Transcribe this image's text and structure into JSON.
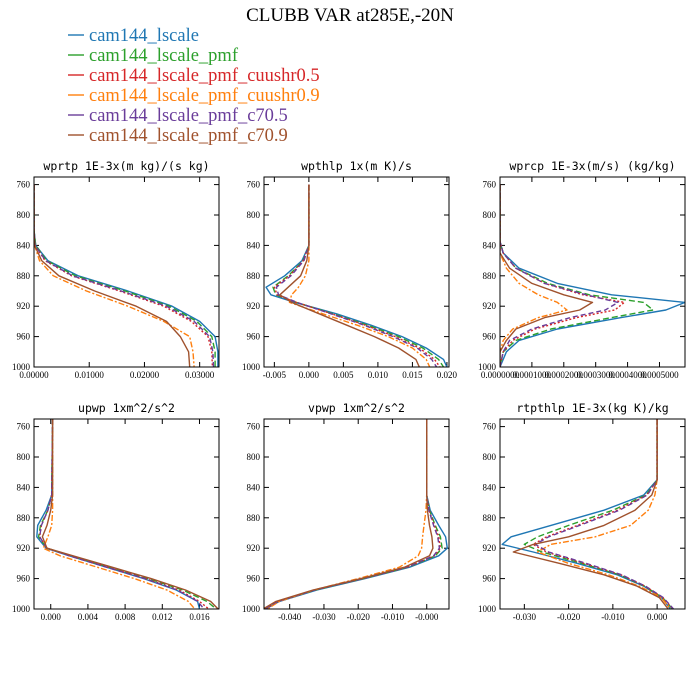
{
  "figure": {
    "title": "CLUBB VAR at285E,-20N"
  },
  "legend": [
    {
      "label": "cam144_lscale",
      "color": "#1f77b4",
      "dash": ""
    },
    {
      "label": "cam144_lscale_pmf",
      "color": "#2ca02c",
      "dash": "6,3"
    },
    {
      "label": "cam144_lscale_pmf_cuushr0.5",
      "color": "#d62728",
      "dash": "2,2"
    },
    {
      "label": "cam144_lscale_pmf_cuushr0.9",
      "color": "#ff7f0e",
      "dash": "6,2,2,2"
    },
    {
      "label": "cam144_lscale_pmf_c70.5",
      "color": "#6a3d9a",
      "dash": "5,3"
    },
    {
      "label": "cam144_lscale_pmf_c70.9",
      "color": "#a0522d",
      "dash": ""
    }
  ],
  "chart_data": [
    {
      "type": "line",
      "title": "wprtp  1E-3x(m kg)/(s kg)",
      "ylim": [
        1000,
        750
      ],
      "yticks": [
        760,
        800,
        840,
        880,
        920,
        960,
        1000
      ],
      "xlim": [
        0,
        0.0335
      ],
      "xticks": [
        0,
        0.01,
        0.02,
        0.03
      ],
      "xtick_labels": [
        "0.00000",
        "0.01000",
        "0.02000",
        "0.03000"
      ],
      "y": [
        760,
        820,
        840,
        860,
        880,
        900,
        920,
        940,
        960,
        980,
        1000
      ],
      "series": [
        {
          "name": "cam144_lscale",
          "values": [
            0,
            0,
            0.0003,
            0.0025,
            0.008,
            0.017,
            0.025,
            0.03,
            0.0328,
            0.0333,
            0.0333
          ]
        },
        {
          "name": "cam144_lscale_pmf",
          "values": [
            0,
            0,
            0.0003,
            0.0023,
            0.0075,
            0.0165,
            0.0245,
            0.0295,
            0.0322,
            0.0328,
            0.0328
          ]
        },
        {
          "name": "cam144_lscale_pmf_cuushr0.5",
          "values": [
            0,
            0,
            0.0002,
            0.002,
            0.0068,
            0.0155,
            0.0235,
            0.0285,
            0.0315,
            0.0322,
            0.0323
          ]
        },
        {
          "name": "cam144_lscale_pmf_cuushr0.9",
          "values": [
            0,
            0,
            0.0001,
            0.001,
            0.0035,
            0.0095,
            0.017,
            0.0235,
            0.0282,
            0.0288,
            0.029
          ]
        },
        {
          "name": "cam144_lscale_pmf_c70.5",
          "values": [
            0,
            0,
            0.0002,
            0.0021,
            0.007,
            0.0158,
            0.024,
            0.029,
            0.0318,
            0.0324,
            0.0325
          ]
        },
        {
          "name": "cam144_lscale_pmf_c70.9",
          "values": [
            0,
            0,
            0.0001,
            0.0014,
            0.0045,
            0.011,
            0.0185,
            0.024,
            0.0265,
            0.028,
            0.0282
          ]
        }
      ]
    },
    {
      "type": "line",
      "title": "wpthlp  1x(m K)/s",
      "ylim": [
        1000,
        750
      ],
      "yticks": [
        760,
        800,
        840,
        880,
        920,
        960,
        1000
      ],
      "xlim": [
        -0.0065,
        0.0203
      ],
      "xticks": [
        -0.005,
        0,
        0.005,
        0.01,
        0.015,
        0.02
      ],
      "xtick_labels": [
        "-0.005",
        "0.000",
        "0.005",
        "0.010",
        "0.015",
        "0.020"
      ],
      "y": [
        760,
        840,
        860,
        880,
        895,
        905,
        915,
        930,
        945,
        960,
        975,
        990,
        1000
      ],
      "series": [
        {
          "name": "cam144_lscale",
          "values": [
            0,
            0,
            -0.001,
            -0.0035,
            -0.0062,
            -0.0055,
            -0.002,
            0.004,
            0.009,
            0.0135,
            0.017,
            0.0195,
            0.02
          ]
        },
        {
          "name": "cam144_lscale_pmf",
          "values": [
            0,
            0,
            -0.0008,
            -0.003,
            -0.0052,
            -0.0048,
            -0.0018,
            0.0035,
            0.0085,
            0.013,
            0.0165,
            0.0188,
            0.0195
          ]
        },
        {
          "name": "cam144_lscale_pmf_cuushr0.5",
          "values": [
            0,
            0,
            -0.0008,
            -0.0028,
            -0.005,
            -0.0046,
            -0.0018,
            0.0033,
            0.0082,
            0.0125,
            0.016,
            0.0182,
            0.019
          ]
        },
        {
          "name": "cam144_lscale_pmf_cuushr0.9",
          "values": [
            0,
            0,
            0,
            -0.0005,
            -0.0015,
            -0.0025,
            -0.0028,
            0.002,
            0.007,
            0.0115,
            0.015,
            0.017,
            0.0175
          ]
        },
        {
          "name": "cam144_lscale_pmf_c70.5",
          "values": [
            0,
            0,
            -0.0007,
            -0.0026,
            -0.0047,
            -0.0044,
            -0.0017,
            0.0032,
            0.008,
            0.0122,
            0.0157,
            0.0178,
            0.0185
          ]
        },
        {
          "name": "cam144_lscale_pmf_c70.9",
          "values": [
            0,
            0,
            -0.0003,
            -0.0012,
            -0.003,
            -0.0042,
            -0.0025,
            0.0015,
            0.0055,
            0.0095,
            0.013,
            0.0155,
            0.016
          ]
        }
      ]
    },
    {
      "type": "line",
      "title": "wprcp  1E-3x(m/s) (kg/kg)",
      "ylim": [
        1000,
        750
      ],
      "yticks": [
        760,
        800,
        840,
        880,
        920,
        960,
        1000
      ],
      "xlim": [
        0,
        0.00058
      ],
      "xticks": [
        0,
        0.0001,
        0.0002,
        0.0003,
        0.0004,
        0.0005
      ],
      "xtick_labels": [
        "0.0000000",
        "0.0001000",
        "0.0002000",
        "0.0003000",
        "0.0004000",
        "0.0005000"
      ],
      "y": [
        760,
        835,
        850,
        870,
        890,
        905,
        915,
        925,
        935,
        950,
        965,
        980,
        1000
      ],
      "series": [
        {
          "name": "cam144_lscale",
          "values": [
            0,
            0,
            1e-05,
            6e-05,
            0.00018,
            0.00035,
            0.00058,
            0.00052,
            0.00038,
            0.00018,
            6e-05,
            2e-05,
            0
          ]
        },
        {
          "name": "cam144_lscale_pmf",
          "values": [
            0,
            0,
            1e-05,
            5e-05,
            0.00015,
            0.00028,
            0.00045,
            0.00048,
            0.00035,
            0.00016,
            5e-05,
            1e-05,
            0
          ]
        },
        {
          "name": "cam144_lscale_pmf_cuushr0.5",
          "values": [
            0,
            0,
            1e-05,
            5e-05,
            0.00014,
            0.00026,
            0.00039,
            0.00036,
            0.00024,
            0.00011,
            4e-05,
            1e-05,
            0
          ]
        },
        {
          "name": "cam144_lscale_pmf_cuushr0.9",
          "values": [
            0,
            0,
            0,
            2e-05,
            6e-05,
            0.00012,
            0.00018,
            0.00021,
            0.00012,
            4e-05,
            1e-05,
            0,
            0
          ]
        },
        {
          "name": "cam144_lscale_pmf_c70.5",
          "values": [
            0,
            0,
            1e-05,
            5e-05,
            0.00014,
            0.00027,
            0.00037,
            0.00033,
            0.00022,
            0.0001,
            3e-05,
            1e-05,
            0
          ]
        },
        {
          "name": "cam144_lscale_pmf_c70.9",
          "values": [
            0,
            0,
            0,
            3e-05,
            0.0001,
            0.0002,
            0.00029,
            0.00025,
            0.00014,
            5e-05,
            2e-05,
            0,
            0
          ]
        }
      ]
    },
    {
      "type": "line",
      "title": "upwp  1xm^2/s^2",
      "ylim": [
        1000,
        750
      ],
      "yticks": [
        760,
        800,
        840,
        880,
        920,
        960,
        1000
      ],
      "xlim": [
        -0.0018,
        0.0181
      ],
      "xticks": [
        0,
        0.004,
        0.008,
        0.012,
        0.016
      ],
      "xtick_labels": [
        "0.000",
        "0.004",
        "0.008",
        "0.012",
        "0.016"
      ],
      "y": [
        750,
        850,
        870,
        890,
        905,
        920,
        930,
        945,
        960,
        975,
        990,
        1000
      ],
      "series": [
        {
          "name": "cam144_lscale",
          "values": [
            0.0002,
            0.0001,
            -0.0005,
            -0.0014,
            -0.0015,
            -0.0005,
            0.002,
            0.006,
            0.01,
            0.0135,
            0.0158,
            0.016
          ]
        },
        {
          "name": "cam144_lscale_pmf",
          "values": [
            0.0002,
            0.0001,
            -0.0003,
            -0.0011,
            -0.0013,
            -0.0004,
            0.0022,
            0.0063,
            0.0105,
            0.0142,
            0.0168,
            0.0178
          ]
        },
        {
          "name": "cam144_lscale_pmf_cuushr0.5",
          "values": [
            0.0002,
            0.0001,
            -0.0003,
            -0.001,
            -0.0012,
            -0.0004,
            0.0021,
            0.0061,
            0.0102,
            0.0138,
            0.016,
            0.017
          ]
        },
        {
          "name": "cam144_lscale_pmf_cuushr0.9",
          "values": [
            0.0002,
            0.0002,
            0.0002,
            0.0001,
            -0.0003,
            -0.0008,
            0.001,
            0.005,
            0.009,
            0.0125,
            0.0148,
            0.0155
          ]
        },
        {
          "name": "cam144_lscale_pmf_c70.5",
          "values": [
            0.0002,
            0.0001,
            -0.0003,
            -0.001,
            -0.0012,
            -0.0004,
            0.002,
            0.006,
            0.0101,
            0.0136,
            0.0158,
            0.0165
          ]
        },
        {
          "name": "cam144_lscale_pmf_c70.9",
          "values": [
            0.0002,
            0.0002,
            0,
            -0.0004,
            -0.0009,
            -0.0004,
            0.0024,
            0.0066,
            0.0108,
            0.0145,
            0.0172,
            0.018
          ]
        }
      ]
    },
    {
      "type": "line",
      "title": "vpwp  1xm^2/s^2",
      "ylim": [
        1000,
        750
      ],
      "yticks": [
        760,
        800,
        840,
        880,
        920,
        960,
        1000
      ],
      "xlim": [
        -0.0475,
        0.0065
      ],
      "xticks": [
        -0.04,
        -0.03,
        -0.02,
        -0.01,
        0
      ],
      "xtick_labels": [
        "-0.040",
        "-0.030",
        "-0.020",
        "-0.010",
        "-0.000"
      ],
      "y": [
        750,
        850,
        870,
        890,
        905,
        920,
        930,
        945,
        960,
        975,
        990,
        1000
      ],
      "series": [
        {
          "name": "cam144_lscale",
          "values": [
            0,
            0,
            0.001,
            0.0035,
            0.0055,
            0.006,
            0.0035,
            -0.005,
            -0.018,
            -0.032,
            -0.043,
            -0.047
          ]
        },
        {
          "name": "cam144_lscale_pmf",
          "values": [
            0,
            0,
            0.0008,
            0.0025,
            0.004,
            0.0045,
            0.0025,
            -0.0055,
            -0.0185,
            -0.0325,
            -0.0435,
            -0.0475
          ]
        },
        {
          "name": "cam144_lscale_pmf_cuushr0.5",
          "values": [
            0,
            0,
            0.0007,
            0.0022,
            0.0035,
            0.004,
            0.0022,
            -0.0057,
            -0.0187,
            -0.0327,
            -0.0435,
            -0.0472
          ]
        },
        {
          "name": "cam144_lscale_pmf_cuushr0.9",
          "values": [
            0,
            0,
            -0.0002,
            -0.0008,
            -0.0012,
            -0.0015,
            -0.0025,
            -0.008,
            -0.02,
            -0.033,
            -0.043,
            -0.0465
          ]
        },
        {
          "name": "cam144_lscale_pmf_c70.5",
          "values": [
            0,
            0,
            0.0006,
            0.002,
            0.0032,
            0.0037,
            0.002,
            -0.0058,
            -0.0188,
            -0.0328,
            -0.0436,
            -0.0473
          ]
        },
        {
          "name": "cam144_lscale_pmf_c70.9",
          "values": [
            0,
            0,
            0.0002,
            0.0008,
            0.0015,
            0.0018,
            0.0008,
            -0.0065,
            -0.0192,
            -0.0332,
            -0.044,
            -0.0478
          ]
        }
      ]
    },
    {
      "type": "line",
      "title": "rtpthlp  1E-3x(kg K)/kg",
      "ylim": [
        1000,
        750
      ],
      "yticks": [
        760,
        800,
        840,
        880,
        920,
        960,
        1000
      ],
      "xlim": [
        -0.0355,
        0.0063
      ],
      "xticks": [
        -0.03,
        -0.02,
        -0.01,
        0
      ],
      "xtick_labels": [
        "-0.030",
        "-0.020",
        "-0.010",
        "0.000"
      ],
      "y": [
        750,
        830,
        850,
        870,
        890,
        905,
        915,
        925,
        940,
        955,
        970,
        985,
        1000
      ],
      "series": [
        {
          "name": "cam144_lscale",
          "values": [
            0,
            0,
            -0.003,
            -0.012,
            -0.024,
            -0.033,
            -0.035,
            -0.028,
            -0.018,
            -0.009,
            -0.003,
            0.001,
            0.003
          ]
        },
        {
          "name": "cam144_lscale_pmf",
          "values": [
            0,
            0,
            -0.0025,
            -0.01,
            -0.02,
            -0.027,
            -0.03,
            -0.026,
            -0.017,
            -0.0085,
            -0.0028,
            0.0012,
            0.0035
          ]
        },
        {
          "name": "cam144_lscale_pmf_cuushr0.5",
          "values": [
            0,
            0,
            -0.0023,
            -0.009,
            -0.018,
            -0.025,
            -0.028,
            -0.025,
            -0.0165,
            -0.0082,
            -0.0027,
            0.0013,
            0.0036
          ]
        },
        {
          "name": "cam144_lscale_pmf_cuushr0.9",
          "values": [
            0,
            0,
            -0.0005,
            -0.002,
            -0.006,
            -0.014,
            -0.024,
            -0.027,
            -0.02,
            -0.011,
            -0.004,
            0.001,
            0.003
          ]
        },
        {
          "name": "cam144_lscale_pmf_c70.5",
          "values": [
            0,
            0,
            -0.0022,
            -0.0085,
            -0.0175,
            -0.0245,
            -0.0275,
            -0.0245,
            -0.016,
            -0.008,
            -0.0026,
            0.0014,
            0.0037
          ]
        },
        {
          "name": "cam144_lscale_pmf_c70.9",
          "values": [
            0,
            0,
            -0.0012,
            -0.005,
            -0.012,
            -0.02,
            -0.028,
            -0.0325,
            -0.022,
            -0.012,
            -0.0045,
            0.0005,
            0.0025
          ]
        }
      ]
    }
  ]
}
